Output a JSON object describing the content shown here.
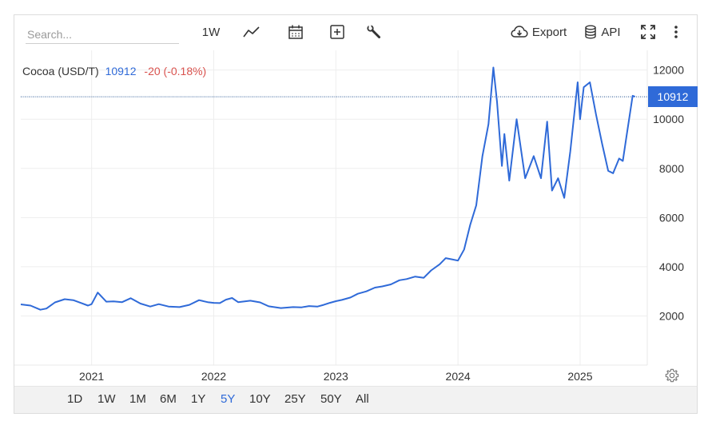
{
  "toolbar": {
    "search_placeholder": "Search...",
    "interval_label": "1W",
    "export_label": "Export",
    "api_label": "API",
    "icons": [
      "line-chart-icon",
      "calendar-icon",
      "compare-plus-icon",
      "wrench-icon",
      "cloud-download-icon",
      "database-icon",
      "fullscreen-icon",
      "more-vertical-icon"
    ]
  },
  "quote": {
    "name": "Cocoa (USD/T)",
    "last": "10912",
    "change": "-20 (-0.18%)",
    "last_color": "#2f6ad8",
    "change_color": "#d9534f"
  },
  "last_price_tag": "10912",
  "ranges": {
    "items": [
      "1D",
      "1W",
      "1M",
      "6M",
      "1Y",
      "5Y",
      "10Y",
      "25Y",
      "50Y",
      "All"
    ],
    "selected": "5Y"
  },
  "colors": {
    "line": "#2f6ad8",
    "grid": "#eeeeee",
    "accent": "#2f6ad8"
  },
  "chart_data": {
    "type": "line",
    "series": [
      {
        "values": [
          [
            2020.42,
            2470
          ],
          [
            2020.5,
            2420
          ],
          [
            2020.58,
            2250
          ],
          [
            2020.63,
            2300
          ],
          [
            2020.7,
            2550
          ],
          [
            2020.78,
            2680
          ],
          [
            2020.85,
            2640
          ],
          [
            2020.91,
            2530
          ],
          [
            2020.97,
            2420
          ],
          [
            2021.0,
            2480
          ],
          [
            2021.05,
            2950
          ],
          [
            2021.12,
            2580
          ],
          [
            2021.18,
            2590
          ],
          [
            2021.25,
            2560
          ],
          [
            2021.32,
            2720
          ],
          [
            2021.4,
            2500
          ],
          [
            2021.48,
            2380
          ],
          [
            2021.55,
            2480
          ],
          [
            2021.63,
            2380
          ],
          [
            2021.72,
            2360
          ],
          [
            2021.8,
            2450
          ],
          [
            2021.88,
            2640
          ],
          [
            2021.95,
            2560
          ],
          [
            2022.0,
            2530
          ],
          [
            2022.05,
            2520
          ],
          [
            2022.1,
            2660
          ],
          [
            2022.15,
            2730
          ],
          [
            2022.2,
            2560
          ],
          [
            2022.3,
            2620
          ],
          [
            2022.38,
            2550
          ],
          [
            2022.45,
            2390
          ],
          [
            2022.55,
            2320
          ],
          [
            2022.65,
            2360
          ],
          [
            2022.72,
            2350
          ],
          [
            2022.78,
            2400
          ],
          [
            2022.85,
            2380
          ],
          [
            2022.9,
            2450
          ],
          [
            2022.95,
            2530
          ],
          [
            2023.0,
            2600
          ],
          [
            2023.05,
            2650
          ],
          [
            2023.12,
            2750
          ],
          [
            2023.18,
            2900
          ],
          [
            2023.25,
            3000
          ],
          [
            2023.32,
            3150
          ],
          [
            2023.38,
            3200
          ],
          [
            2023.45,
            3280
          ],
          [
            2023.52,
            3450
          ],
          [
            2023.58,
            3500
          ],
          [
            2023.65,
            3600
          ],
          [
            2023.72,
            3550
          ],
          [
            2023.78,
            3850
          ],
          [
            2023.85,
            4100
          ],
          [
            2023.9,
            4350
          ],
          [
            2023.95,
            4300
          ],
          [
            2024.0,
            4250
          ],
          [
            2024.05,
            4700
          ],
          [
            2024.1,
            5700
          ],
          [
            2024.15,
            6500
          ],
          [
            2024.2,
            8500
          ],
          [
            2024.25,
            9800
          ],
          [
            2024.29,
            12100
          ],
          [
            2024.32,
            10700
          ],
          [
            2024.36,
            8100
          ],
          [
            2024.38,
            9400
          ],
          [
            2024.42,
            7500
          ],
          [
            2024.48,
            10000
          ],
          [
            2024.55,
            7600
          ],
          [
            2024.62,
            8500
          ],
          [
            2024.68,
            7600
          ],
          [
            2024.73,
            9900
          ],
          [
            2024.77,
            7100
          ],
          [
            2024.82,
            7600
          ],
          [
            2024.87,
            6800
          ],
          [
            2024.92,
            8700
          ],
          [
            2024.98,
            11500
          ],
          [
            2025.0,
            10000
          ],
          [
            2025.03,
            11300
          ],
          [
            2025.08,
            11500
          ],
          [
            2025.13,
            10200
          ],
          [
            2025.18,
            9000
          ],
          [
            2025.23,
            7900
          ],
          [
            2025.27,
            7800
          ],
          [
            2025.32,
            8400
          ],
          [
            2025.35,
            8300
          ],
          [
            2025.38,
            9300
          ],
          [
            2025.43,
            10950
          ],
          [
            2025.45,
            10912
          ]
        ]
      }
    ],
    "xlabel": "",
    "ylabel": "",
    "x_ticks": [
      "2021",
      "2022",
      "2023",
      "2024",
      "2025"
    ],
    "x_tick_values": [
      2021,
      2022,
      2023,
      2024,
      2025
    ],
    "y_ticks": [
      2000,
      4000,
      6000,
      8000,
      10000,
      12000
    ],
    "xlim": [
      2020.42,
      2025.55
    ],
    "ylim": [
      0,
      12800
    ],
    "last_value": 10912,
    "grid": true,
    "legend": "none"
  }
}
